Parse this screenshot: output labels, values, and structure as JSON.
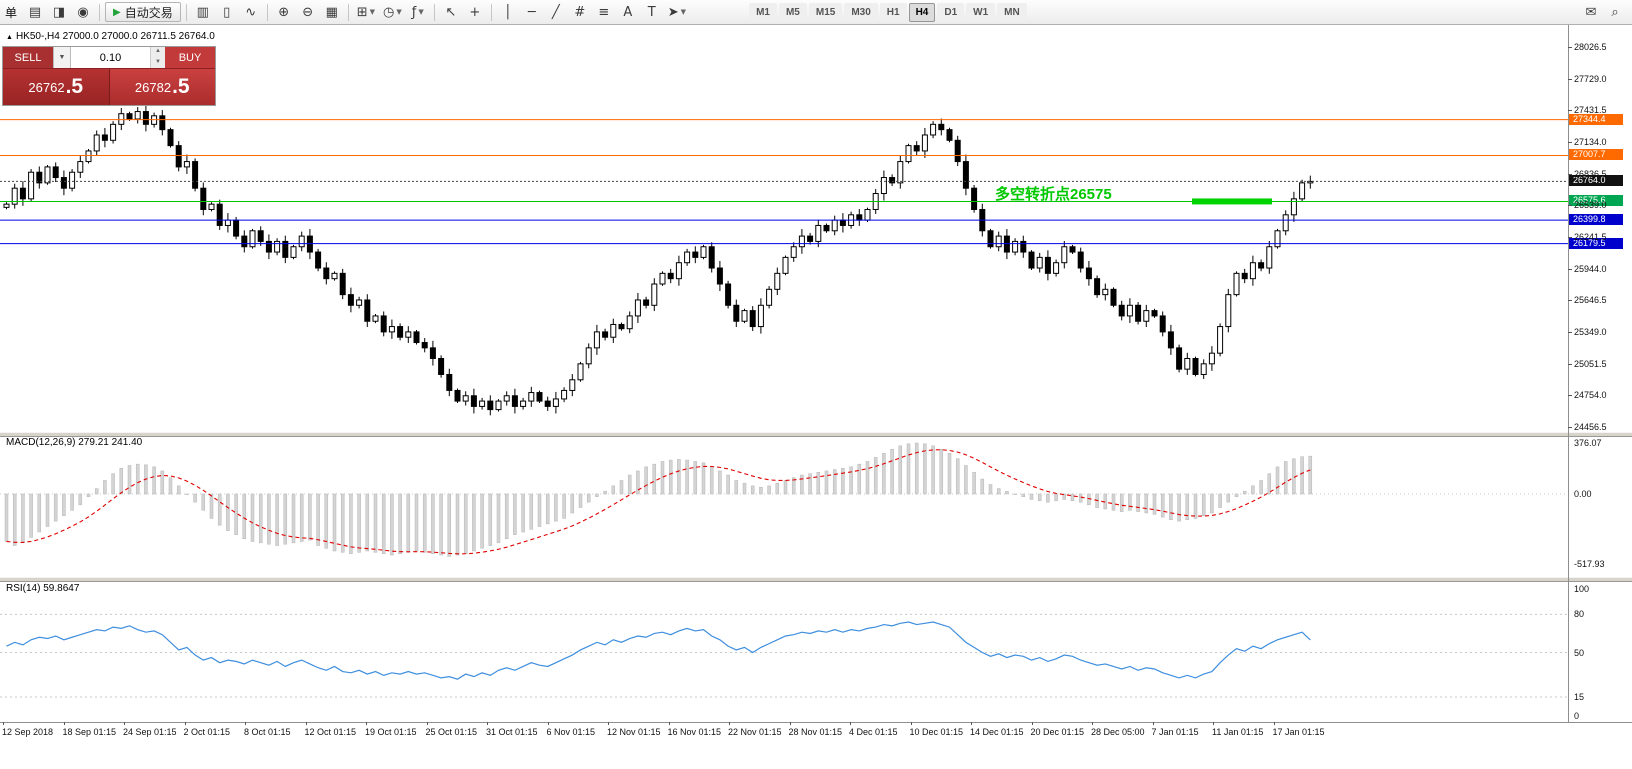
{
  "toolbar": {
    "menu_char": "单",
    "buttons": [
      {
        "name": "new-order-button",
        "glyph": "▤"
      },
      {
        "name": "market-watch-button",
        "glyph": "◨"
      },
      {
        "name": "navigator-button",
        "glyph": "◉"
      },
      {
        "sep": true
      },
      {
        "name": "autotrading-button",
        "glyph": "▶",
        "label": "自动交易"
      },
      {
        "sep": true
      },
      {
        "name": "bar-chart-button",
        "glyph": "▥"
      },
      {
        "name": "candlestick-chart-button",
        "glyph": "▯"
      },
      {
        "name": "line-chart-button",
        "glyph": "∿"
      },
      {
        "sep": true
      },
      {
        "name": "zoom-in-button",
        "glyph": "⊕"
      },
      {
        "name": "zoom-out-button",
        "glyph": "⊖"
      },
      {
        "name": "tile-windows-button",
        "glyph": "▦"
      },
      {
        "sep": true
      },
      {
        "name": "new-chart-button",
        "glyph": "⊞",
        "caret": true
      },
      {
        "name": "profiles-button",
        "glyph": "◷",
        "caret": true
      },
      {
        "name": "indicators-button",
        "glyph": "ƒ",
        "caret": true
      },
      {
        "sep": true
      },
      {
        "name": "cursor-button",
        "glyph": "↖"
      },
      {
        "name": "crosshair-button",
        "glyph": "+"
      },
      {
        "sep": true
      },
      {
        "name": "vertical-line-button",
        "glyph": "│"
      },
      {
        "name": "horizontal-line-button",
        "glyph": "─"
      },
      {
        "name": "trendline-button",
        "glyph": "╱"
      },
      {
        "name": "channel-button",
        "glyph": "#"
      },
      {
        "name": "fibonacci-button",
        "glyph": "≡"
      },
      {
        "name": "text-button",
        "glyph": "A"
      },
      {
        "name": "label-button",
        "glyph": "T"
      },
      {
        "name": "arrows-button",
        "glyph": "➤",
        "caret": true
      }
    ],
    "timeframes": [
      {
        "label": "M1"
      },
      {
        "label": "M5"
      },
      {
        "label": "M15"
      },
      {
        "label": "M30"
      },
      {
        "label": "H1"
      },
      {
        "label": "H4",
        "active": true
      },
      {
        "label": "D1"
      },
      {
        "label": "W1"
      },
      {
        "label": "MN"
      }
    ],
    "right_buttons": [
      {
        "name": "chat-button",
        "glyph": "✉"
      },
      {
        "name": "search-button",
        "glyph": "⌕"
      }
    ]
  },
  "chart": {
    "header_icon": "▲",
    "header": "HK50-,H4 27000.0 27000.0 26711.5 26764.0",
    "annotation_text": "多空转折点26575"
  },
  "trade": {
    "sell_label": "SELL",
    "buy_label": "BUY",
    "volume": "0.10",
    "sell_price_main": "26762",
    "sell_price_big": ".5",
    "buy_price_main": "26782",
    "buy_price_big": ".5"
  },
  "panels": {
    "macd_label": "MACD(12,26,9) 279.21 241.40",
    "rsi_label": "RSI(14) 59.8647"
  },
  "chart_data": [
    {
      "type": "candlestick",
      "name": "HK50- H4",
      "ohlc_current": {
        "open": 27000.0,
        "high": 27000.0,
        "low": 26711.5,
        "close": 26764.0
      },
      "ylim": [
        24456.5,
        28026.5
      ],
      "y_ticks": [
        "28026.5",
        "27729.0",
        "27431.5",
        "27134.0",
        "26836.5",
        "26539.0",
        "26241.5",
        "25944.0",
        "25646.5",
        "25349.0",
        "25051.5",
        "24754.0",
        "24456.5"
      ],
      "x_labels": [
        "12 Sep 2018",
        "18 Sep 01:15",
        "24 Sep 01:15",
        "2 Oct 01:15",
        "8 Oct 01:15",
        "12 Oct 01:15",
        "19 Oct 01:15",
        "25 Oct 01:15",
        "31 Oct 01:15",
        "6 Nov 01:15",
        "12 Nov 01:15",
        "16 Nov 01:15",
        "22 Nov 01:15",
        "28 Nov 01:15",
        "4 Dec 01:15",
        "10 Dec 01:15",
        "14 Dec 01:15",
        "20 Dec 01:15",
        "28 Dec 05:00",
        "7 Jan 01:15",
        "11 Jan 01:15",
        "17 Jan 01:15"
      ],
      "levels": [
        {
          "price": 27344.4,
          "label": "27344.4",
          "color": "#ff6a00",
          "style": "solid",
          "tag_color": "#ff6a00"
        },
        {
          "price": 27007.7,
          "label": "27007.7",
          "color": "#ff6a00",
          "style": "solid",
          "tag_color": "#ff6a00"
        },
        {
          "price": 26764.0,
          "label": "26764.0",
          "color": "#444444",
          "style": "dotted",
          "tag_color": "#111111"
        },
        {
          "price": 26575.6,
          "label": "26575.6",
          "color": "#00c400",
          "style": "solid",
          "tag_color": "#00a651",
          "highlight": true
        },
        {
          "price": 26399.8,
          "label": "26399.8",
          "color": "#0000e8",
          "style": "solid",
          "tag_color": "#0000cd"
        },
        {
          "price": 26179.5,
          "label": "26179.5",
          "color": "#0000e8",
          "style": "solid",
          "tag_color": "#0000cd"
        }
      ],
      "closes": [
        26550,
        26700,
        26600,
        26850,
        26750,
        26900,
        26800,
        26700,
        26850,
        26950,
        27050,
        27200,
        27150,
        27300,
        27400,
        27350,
        27420,
        27300,
        27380,
        27250,
        27100,
        26900,
        26950,
        26700,
        26500,
        26550,
        26350,
        26400,
        26250,
        26150,
        26300,
        26200,
        26100,
        26200,
        26050,
        26150,
        26250,
        26100,
        25950,
        25850,
        25900,
        25700,
        25600,
        25650,
        25450,
        25500,
        25350,
        25400,
        25300,
        25350,
        25250,
        25200,
        25100,
        24950,
        24800,
        24700,
        24750,
        24650,
        24700,
        24620,
        24700,
        24750,
        24650,
        24700,
        24780,
        24700,
        24650,
        24720,
        24800,
        24900,
        25050,
        25200,
        25350,
        25300,
        25420,
        25380,
        25500,
        25650,
        25600,
        25800,
        25900,
        25850,
        26000,
        26100,
        26050,
        26150,
        25950,
        25800,
        25600,
        25450,
        25550,
        25400,
        25600,
        25750,
        25900,
        26050,
        26150,
        26250,
        26200,
        26350,
        26300,
        26400,
        26350,
        26450,
        26400,
        26500,
        26650,
        26800,
        26750,
        26950,
        27100,
        27050,
        27200,
        27300,
        27250,
        27150,
        26950,
        26700,
        26500,
        26300,
        26150,
        26250,
        26100,
        26200,
        26100,
        25950,
        26050,
        25900,
        26000,
        26150,
        26100,
        25950,
        25850,
        25700,
        25750,
        25600,
        25500,
        25600,
        25450,
        25550,
        25500,
        25350,
        25200,
        25000,
        25100,
        24950,
        25050,
        25150,
        25400,
        25700,
        25900,
        25850,
        26000,
        25950,
        26150,
        26300,
        26450,
        26600,
        26750,
        26764
      ]
    },
    {
      "type": "bar",
      "name": "MACD(12,26,9)",
      "ylim": [
        -517.93,
        376.07
      ],
      "signal_note": "red dashed EMA(9) of histogram",
      "axis_labels": [
        {
          "text": "376.07",
          "value": 376.07
        },
        {
          "text": "0.00",
          "value": 0
        },
        {
          "text": "-517.93",
          "value": -517.93
        }
      ],
      "values": [
        -350,
        -380,
        -360,
        -320,
        -280,
        -240,
        -200,
        -160,
        -120,
        -80,
        -20,
        40,
        100,
        150,
        190,
        210,
        220,
        215,
        200,
        170,
        120,
        60,
        0,
        -60,
        -120,
        -180,
        -230,
        -270,
        -300,
        -330,
        -350,
        -360,
        -370,
        -380,
        -370,
        -360,
        -350,
        -340,
        -380,
        -400,
        -420,
        -430,
        -440,
        -430,
        -420,
        -430,
        -440,
        -450,
        -440,
        -430,
        -420,
        -430,
        -440,
        -450,
        -460,
        -450,
        -440,
        -420,
        -400,
        -380,
        -360,
        -330,
        -300,
        -280,
        -260,
        -240,
        -220,
        -200,
        -180,
        -140,
        -100,
        -60,
        -20,
        20,
        60,
        100,
        140,
        170,
        200,
        220,
        240,
        250,
        255,
        250,
        240,
        230,
        200,
        170,
        140,
        100,
        80,
        60,
        50,
        60,
        80,
        100,
        120,
        140,
        150,
        160,
        170,
        180,
        190,
        200,
        220,
        240,
        270,
        300,
        330,
        355,
        370,
        376,
        370,
        355,
        330,
        300,
        260,
        210,
        160,
        110,
        70,
        40,
        20,
        0,
        -20,
        -40,
        -50,
        -60,
        -50,
        -40,
        -50,
        -60,
        -80,
        -100,
        -110,
        -120,
        -130,
        -120,
        -130,
        -140,
        -150,
        -170,
        -190,
        -200,
        -190,
        -180,
        -160,
        -140,
        -100,
        -60,
        -20,
        20,
        60,
        100,
        150,
        200,
        240,
        260,
        275,
        279
      ]
    },
    {
      "type": "line",
      "name": "RSI(14)",
      "ylim": [
        0,
        100
      ],
      "level_lines": [
        80,
        50,
        15
      ],
      "axis_labels": [
        {
          "text": "100",
          "value": 100
        },
        {
          "text": "80",
          "value": 80
        },
        {
          "text": "50",
          "value": 50
        },
        {
          "text": "15",
          "value": 15
        },
        {
          "text": "0",
          "value": 0
        }
      ],
      "values": [
        55,
        58,
        56,
        60,
        62,
        61,
        63,
        60,
        62,
        64,
        66,
        68,
        67,
        70,
        69,
        71,
        68,
        66,
        67,
        64,
        58,
        52,
        54,
        48,
        44,
        46,
        42,
        44,
        43,
        41,
        44,
        42,
        40,
        43,
        39,
        42,
        44,
        41,
        38,
        36,
        39,
        35,
        34,
        36,
        33,
        35,
        32,
        34,
        33,
        35,
        33,
        34,
        32,
        30,
        31,
        29,
        33,
        31,
        34,
        32,
        36,
        38,
        36,
        39,
        42,
        40,
        39,
        42,
        45,
        48,
        52,
        55,
        58,
        56,
        60,
        58,
        61,
        63,
        62,
        65,
        66,
        64,
        67,
        69,
        67,
        68,
        63,
        60,
        55,
        52,
        54,
        50,
        54,
        57,
        60,
        63,
        64,
        66,
        65,
        67,
        66,
        68,
        66,
        68,
        67,
        69,
        70,
        72,
        71,
        73,
        74,
        72,
        73,
        74,
        72,
        70,
        64,
        58,
        54,
        50,
        47,
        49,
        46,
        48,
        47,
        44,
        46,
        43,
        45,
        48,
        47,
        44,
        42,
        40,
        41,
        39,
        37,
        39,
        36,
        38,
        37,
        34,
        32,
        30,
        32,
        30,
        33,
        35,
        42,
        48,
        53,
        51,
        55,
        53,
        57,
        60,
        62,
        64,
        66,
        59.86
      ]
    }
  ]
}
